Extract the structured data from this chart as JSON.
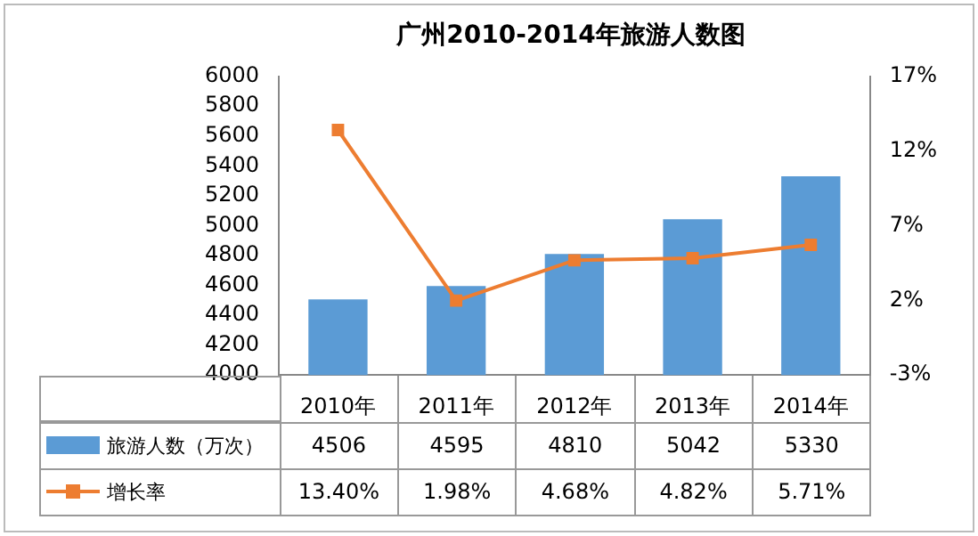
{
  "chart_data": {
    "type": "bar",
    "title": "广州2010-2014年旅游人数图",
    "categories": [
      "2010年",
      "2011年",
      "2012年",
      "2013年",
      "2014年"
    ],
    "series": [
      {
        "name": "旅游人数（万次）",
        "color": "#5b9bd5",
        "values": [
          4506,
          4595,
          4810,
          5042,
          5330
        ],
        "value_labels": [
          "4506",
          "4595",
          "4810",
          "5042",
          "5330"
        ]
      },
      {
        "name": "增长率",
        "type": "line",
        "axis": "y2",
        "color": "#ed7d31",
        "values": [
          13.4,
          1.98,
          4.68,
          4.82,
          5.71
        ],
        "value_labels": [
          "13.40%",
          "1.98%",
          "4.68%",
          "4.82%",
          "5.71%"
        ]
      }
    ],
    "ylim": [
      4000,
      6000
    ],
    "yticks": [
      4000,
      4200,
      4400,
      4600,
      4800,
      5000,
      5200,
      5400,
      5600,
      5800,
      6000
    ],
    "y2lim": [
      -3,
      17
    ],
    "y2ticks": [
      {
        "value": -3,
        "label": "-3%"
      },
      {
        "value": 2,
        "label": "2%"
      },
      {
        "value": 7,
        "label": "7%"
      },
      {
        "value": 12,
        "label": "12%"
      },
      {
        "value": 17,
        "label": "17%"
      }
    ],
    "grid": false,
    "legend": "bottom",
    "marker": "square",
    "line_style": "solid"
  }
}
